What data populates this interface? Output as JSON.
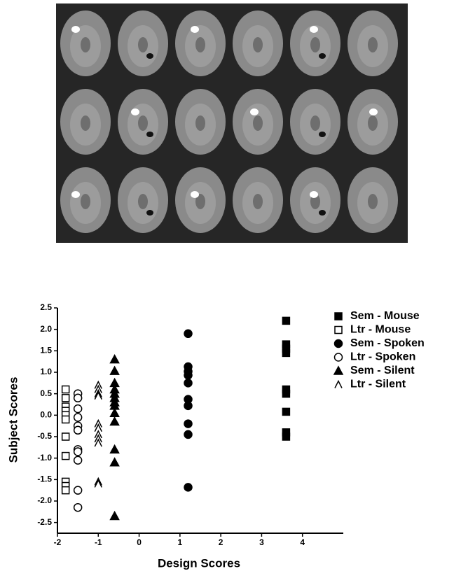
{
  "chart_data": {
    "type": "scatter",
    "x_label": "Design Scores",
    "y_label": "Subject Scores",
    "xlim": [
      -2,
      5
    ],
    "ylim": [
      -2.75,
      2.5
    ],
    "xticks": [
      -2,
      -1,
      0,
      1,
      2,
      3,
      4
    ],
    "yticks": [
      2.5,
      {
        "value": 2,
        "label": "2.0"
      },
      1.5,
      {
        "value": 1,
        "label": "1.0"
      },
      0.5,
      {
        "value": 0,
        "label": "0.0"
      },
      -0.5,
      {
        "value": -1,
        "label": "-1.0"
      },
      -1.5,
      {
        "value": -2,
        "label": "-2.0"
      },
      -2.5
    ],
    "series": [
      {
        "name": "Sem - Mouse",
        "marker": "square",
        "filled": true,
        "color": "#000000",
        "x": [
          3.6,
          3.6,
          3.6,
          3.6,
          3.6,
          3.6,
          3.6,
          3.6,
          3.6
        ],
        "values": [
          2.2,
          1.65,
          1.55,
          1.45,
          0.6,
          0.5,
          0.08,
          -0.4,
          -0.5
        ]
      },
      {
        "name": "Ltr - Mouse",
        "marker": "square",
        "filled": false,
        "color": "#000000",
        "x": [
          -1.8,
          -1.8,
          -1.8,
          -1.8,
          -1.8,
          -1.8,
          -1.8,
          -1.8,
          -1.8,
          -1.8,
          -1.8
        ],
        "values": [
          0.6,
          0.4,
          0.2,
          0.1,
          0,
          -0.1,
          -0.5,
          -0.95,
          -1.55,
          -1.65,
          -1.75
        ]
      },
      {
        "name": "Sem - Spoken",
        "marker": "circle",
        "filled": true,
        "color": "#000000",
        "x": [
          1.2,
          1.2,
          1.2,
          1.2,
          1.2,
          1.2,
          1.2,
          1.2,
          1.2,
          1.2
        ],
        "values": [
          1.9,
          1.13,
          1.02,
          0.93,
          0.75,
          0.37,
          0.22,
          -0.2,
          -0.45,
          -1.68
        ]
      },
      {
        "name": "Ltr - Spoken",
        "marker": "circle",
        "filled": false,
        "color": "#000000",
        "x": [
          -1.5,
          -1.5,
          -1.5,
          -1.5,
          -1.5,
          -1.5,
          -1.5,
          -1.5,
          -1.5,
          -1.5,
          -1.5
        ],
        "values": [
          0.5,
          0.4,
          0.15,
          -0.05,
          -0.25,
          -0.35,
          -0.8,
          -0.85,
          -1.05,
          -1.75,
          -2.15
        ]
      },
      {
        "name": "Sem - Silent",
        "marker": "triangle",
        "filled": true,
        "color": "#000000",
        "x": [
          -0.6,
          -0.6,
          -0.6,
          -0.6,
          -0.6,
          -0.6,
          -0.6,
          -0.6,
          -0.6,
          -0.6,
          -0.6,
          -0.6,
          -0.6
        ],
        "values": [
          1.3,
          1.03,
          0.75,
          0.6,
          0.5,
          0.4,
          0.3,
          0.22,
          0.05,
          -0.15,
          -0.8,
          -1.1,
          -2.35
        ]
      },
      {
        "name": "Ltr - Silent",
        "marker": "caret",
        "filled": false,
        "color": "#000000",
        "x": [
          -1,
          -1,
          -1,
          -1,
          -1,
          -1,
          -1,
          -1,
          -1,
          -1,
          -1
        ],
        "values": [
          0.7,
          0.6,
          0.5,
          0.45,
          -0.2,
          -0.3,
          -0.45,
          -0.55,
          -0.65,
          -1.55,
          -1.6
        ]
      }
    ]
  }
}
